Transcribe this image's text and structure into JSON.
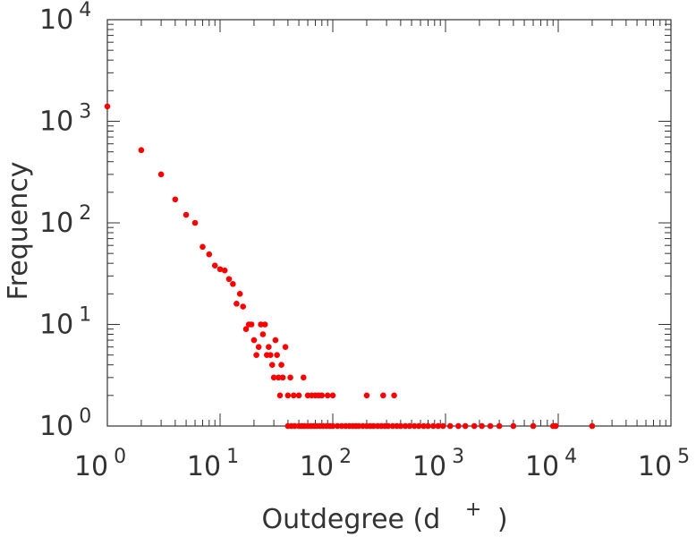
{
  "chart_data": {
    "type": "scatter",
    "scale": "log-log",
    "xlabel": "Outdegree (d",
    "xlabel_superscript": "+",
    "xlabel_close": ")",
    "ylabel": "Frequency",
    "xlim": [
      1,
      100000
    ],
    "ylim": [
      1,
      10000
    ],
    "marker_color": "#ff0000",
    "x_ticks": [
      {
        "base": "10",
        "exp": "0"
      },
      {
        "base": "10",
        "exp": "1"
      },
      {
        "base": "10",
        "exp": "2"
      },
      {
        "base": "10",
        "exp": "3"
      },
      {
        "base": "10",
        "exp": "4"
      },
      {
        "base": "10",
        "exp": "5"
      }
    ],
    "y_ticks": [
      {
        "base": "10",
        "exp": "0"
      },
      {
        "base": "10",
        "exp": "1"
      },
      {
        "base": "10",
        "exp": "2"
      },
      {
        "base": "10",
        "exp": "3"
      },
      {
        "base": "10",
        "exp": "4"
      }
    ],
    "points": [
      [
        1,
        1400
      ],
      [
        2,
        520
      ],
      [
        3,
        300
      ],
      [
        4,
        170
      ],
      [
        5,
        120
      ],
      [
        6,
        100
      ],
      [
        7,
        58
      ],
      [
        8,
        49
      ],
      [
        9,
        38
      ],
      [
        10,
        35
      ],
      [
        11,
        34
      ],
      [
        12,
        28
      ],
      [
        13,
        25
      ],
      [
        14,
        16
      ],
      [
        15,
        20
      ],
      [
        16,
        15
      ],
      [
        17,
        9
      ],
      [
        18,
        10
      ],
      [
        19,
        10
      ],
      [
        20,
        7
      ],
      [
        21,
        5
      ],
      [
        22,
        6
      ],
      [
        23,
        10
      ],
      [
        24,
        8
      ],
      [
        25,
        10
      ],
      [
        26,
        5
      ],
      [
        27,
        6
      ],
      [
        28,
        5
      ],
      [
        29,
        4
      ],
      [
        30,
        3
      ],
      [
        31,
        7
      ],
      [
        32,
        5
      ],
      [
        33,
        3
      ],
      [
        34,
        2
      ],
      [
        35,
        4
      ],
      [
        36,
        3
      ],
      [
        38,
        6
      ],
      [
        40,
        2
      ],
      [
        42,
        3
      ],
      [
        45,
        2
      ],
      [
        50,
        2
      ],
      [
        55,
        3
      ],
      [
        60,
        2
      ],
      [
        65,
        2
      ],
      [
        70,
        2
      ],
      [
        75,
        2
      ],
      [
        80,
        2
      ],
      [
        90,
        2
      ],
      [
        100,
        2
      ],
      [
        200,
        2
      ],
      [
        280,
        2
      ],
      [
        350,
        2
      ],
      [
        40,
        1
      ],
      [
        43,
        1
      ],
      [
        46,
        1
      ],
      [
        50,
        1
      ],
      [
        53,
        1
      ],
      [
        56,
        1
      ],
      [
        60,
        1
      ],
      [
        64,
        1
      ],
      [
        68,
        1
      ],
      [
        72,
        1
      ],
      [
        77,
        1
      ],
      [
        82,
        1
      ],
      [
        88,
        1
      ],
      [
        94,
        1
      ],
      [
        100,
        1
      ],
      [
        110,
        1
      ],
      [
        120,
        1
      ],
      [
        130,
        1
      ],
      [
        140,
        1
      ],
      [
        150,
        1
      ],
      [
        160,
        1
      ],
      [
        170,
        1
      ],
      [
        185,
        1
      ],
      [
        200,
        1
      ],
      [
        215,
        1
      ],
      [
        230,
        1
      ],
      [
        250,
        1
      ],
      [
        270,
        1
      ],
      [
        290,
        1
      ],
      [
        310,
        1
      ],
      [
        340,
        1
      ],
      [
        370,
        1
      ],
      [
        400,
        1
      ],
      [
        440,
        1
      ],
      [
        480,
        1
      ],
      [
        530,
        1
      ],
      [
        580,
        1
      ],
      [
        640,
        1
      ],
      [
        700,
        1
      ],
      [
        780,
        1
      ],
      [
        860,
        1
      ],
      [
        950,
        1
      ],
      [
        1100,
        1
      ],
      [
        1300,
        1
      ],
      [
        1500,
        1
      ],
      [
        1800,
        1
      ],
      [
        2100,
        1
      ],
      [
        2500,
        1
      ],
      [
        3000,
        1
      ],
      [
        4000,
        1
      ],
      [
        6000,
        1
      ],
      [
        9000,
        1
      ],
      [
        9500,
        1
      ],
      [
        20000,
        1
      ]
    ]
  }
}
